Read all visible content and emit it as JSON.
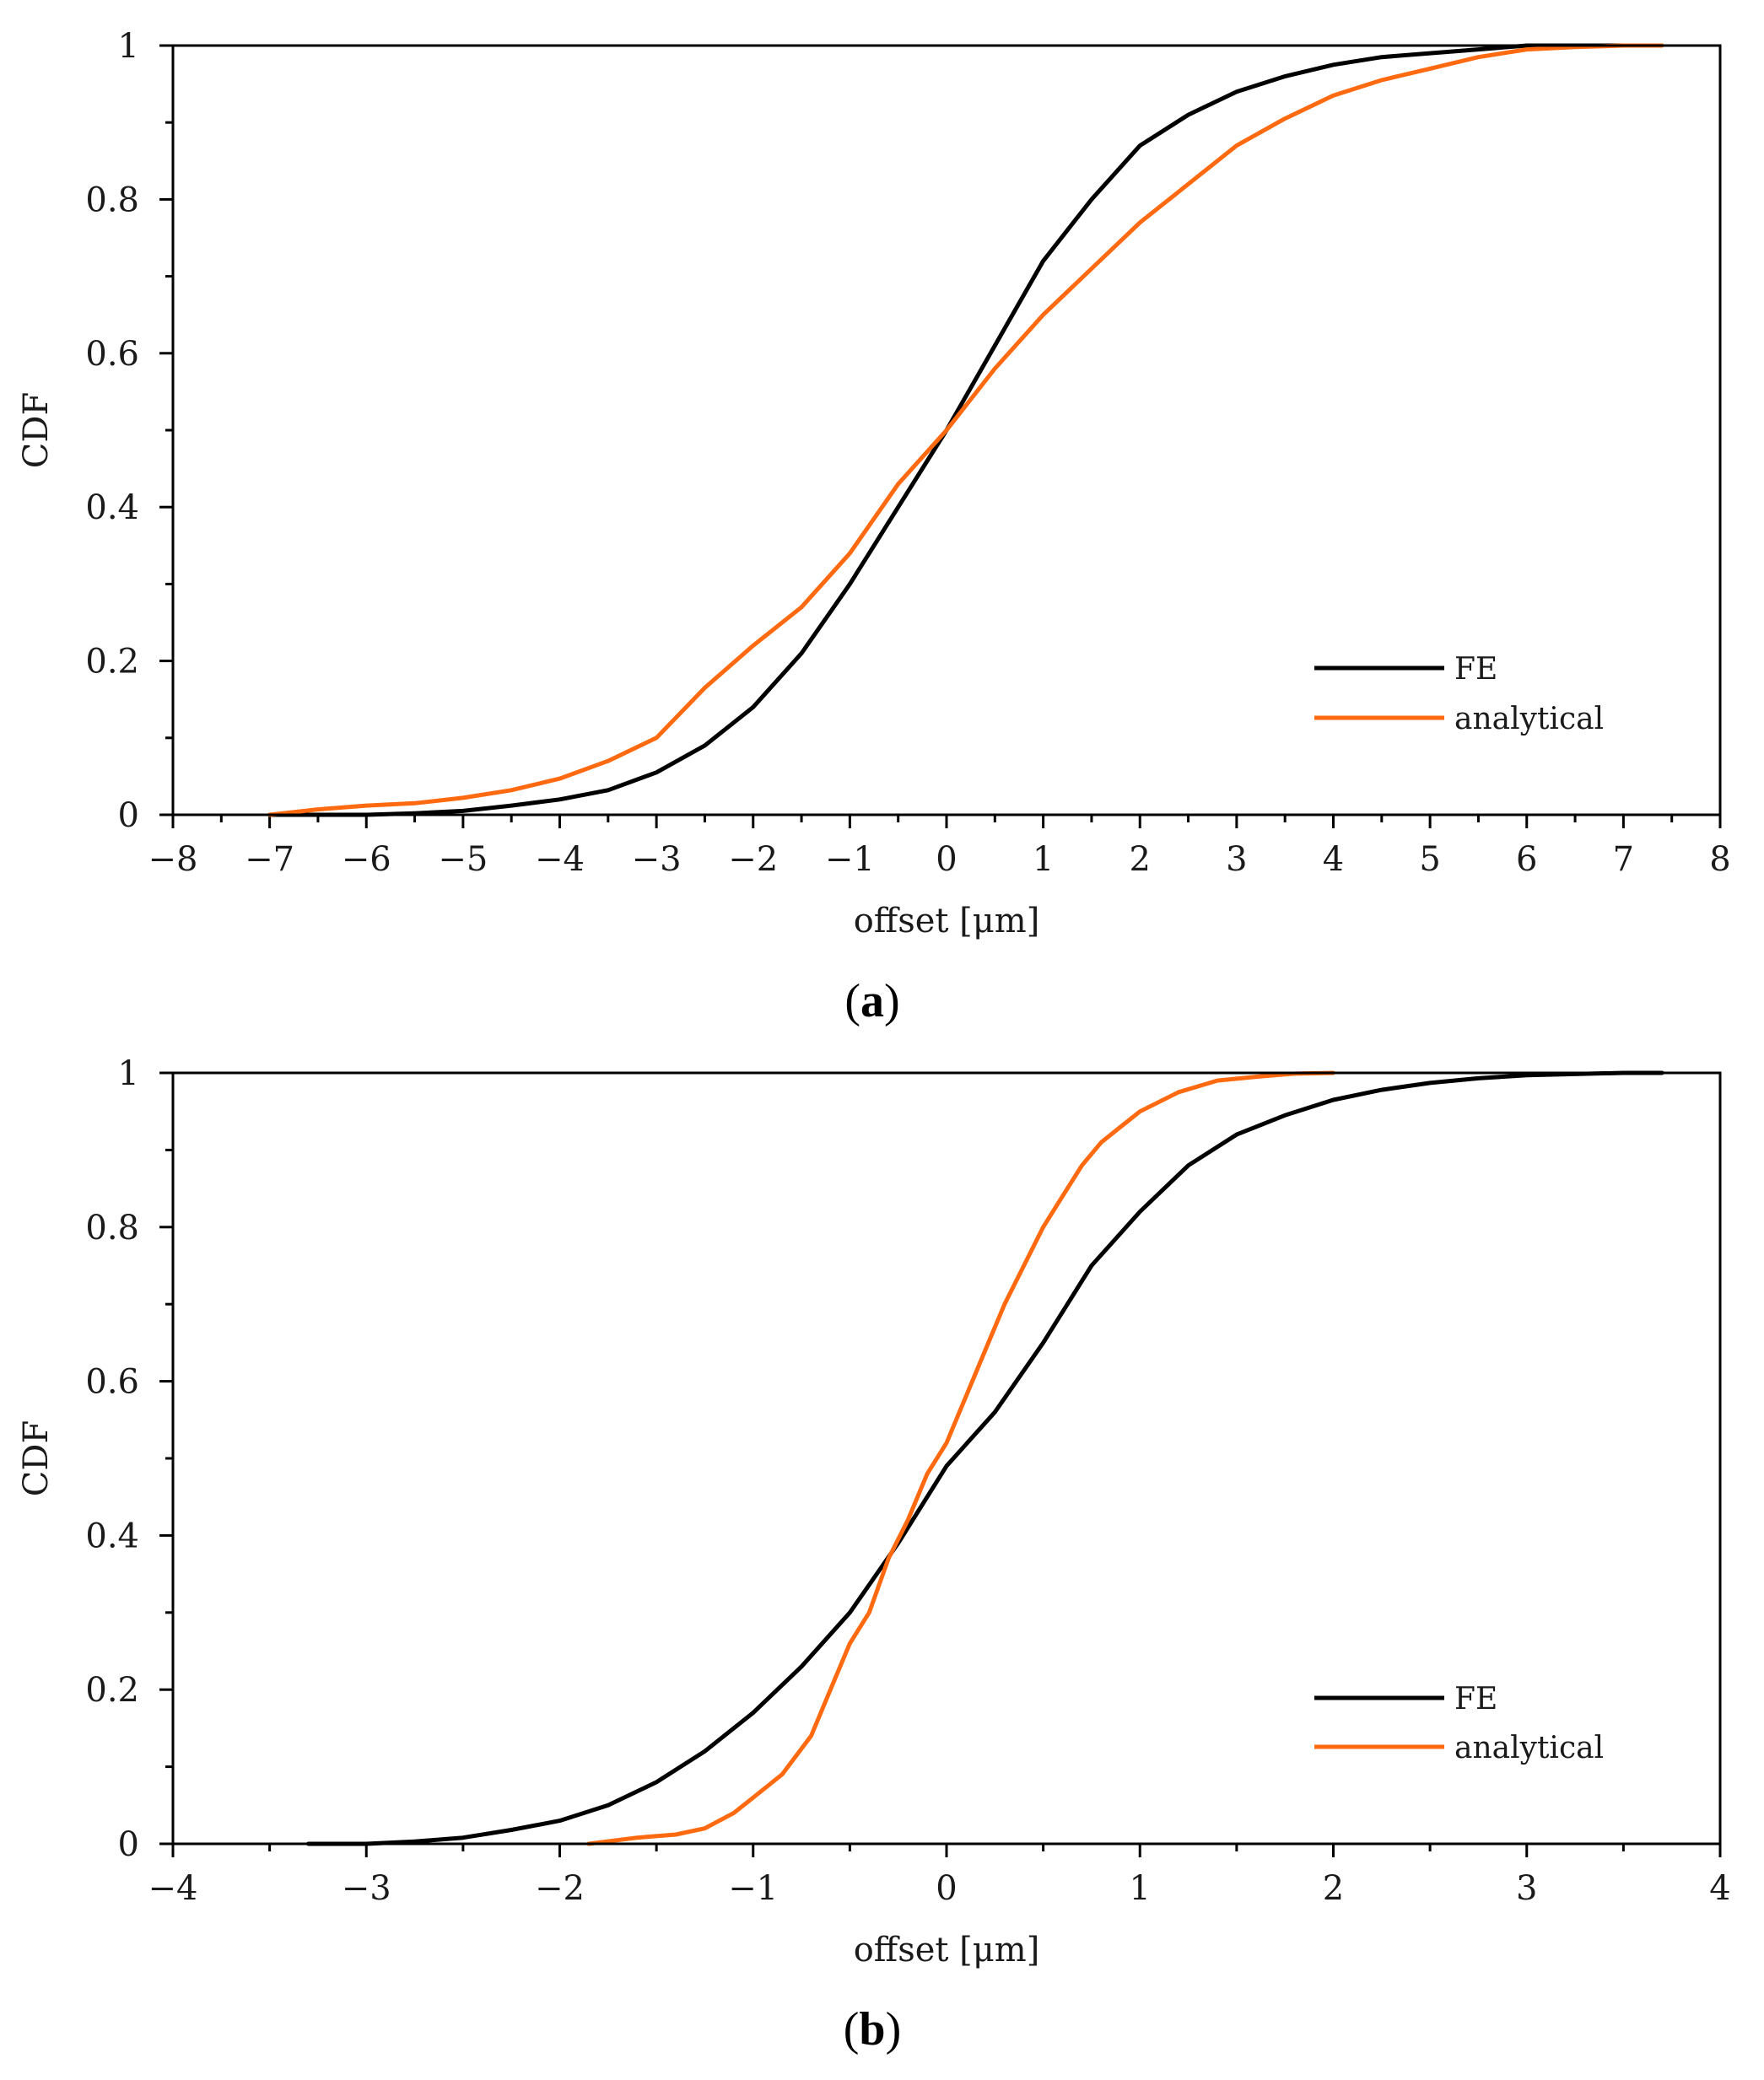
{
  "figure": {
    "colors": {
      "fe": "#000000",
      "analytical": "#ff6a10",
      "axis": "#000000"
    }
  },
  "chart_data": [
    {
      "type": "line",
      "panel": "a",
      "caption": {
        "open": "(",
        "letter": "a",
        "close": ")"
      },
      "xlabel": "offset  [μm]",
      "ylabel": "CDF",
      "xlim": [
        -8,
        8
      ],
      "ylim": [
        0,
        1
      ],
      "xticks": [
        -8,
        -7,
        -6,
        -5,
        -4,
        -3,
        -2,
        -1,
        0,
        1,
        2,
        3,
        4,
        5,
        6,
        7,
        8
      ],
      "xtick_labels": [
        "−8",
        "−7",
        "−6",
        "−5",
        "−4",
        "−3",
        "−2",
        "−1",
        "0",
        "1",
        "2",
        "3",
        "4",
        "5",
        "6",
        "7",
        "8"
      ],
      "yticks": [
        0,
        0.2,
        0.4,
        0.6,
        0.8,
        1
      ],
      "ytick_labels": [
        "0",
        "0.2",
        "0.4",
        "0.6",
        "0.8",
        "1"
      ],
      "grid": false,
      "legend": {
        "position": "bottom-right",
        "entries": [
          "FE",
          "analytical"
        ]
      },
      "series": [
        {
          "name": "FE",
          "x": [
            -7.0,
            -6.0,
            -5.5,
            -5.0,
            -4.5,
            -4.0,
            -3.5,
            -3.0,
            -2.5,
            -2.0,
            -1.5,
            -1.0,
            -0.5,
            0.0,
            0.5,
            1.0,
            1.5,
            2.0,
            2.5,
            3.0,
            3.5,
            4.0,
            4.5,
            5.0,
            5.5,
            6.0,
            7.0
          ],
          "y": [
            0.0,
            0.0,
            0.002,
            0.005,
            0.012,
            0.02,
            0.032,
            0.055,
            0.09,
            0.14,
            0.21,
            0.3,
            0.4,
            0.5,
            0.61,
            0.72,
            0.8,
            0.87,
            0.91,
            0.94,
            0.96,
            0.975,
            0.985,
            0.99,
            0.995,
            1.0,
            1.0
          ]
        },
        {
          "name": "analytical",
          "x": [
            -7.0,
            -6.5,
            -6.0,
            -5.5,
            -5.0,
            -4.5,
            -4.0,
            -3.5,
            -3.0,
            -2.5,
            -2.0,
            -1.5,
            -1.0,
            -0.5,
            0.0,
            0.5,
            1.0,
            1.5,
            2.0,
            2.5,
            3.0,
            3.5,
            4.0,
            4.5,
            5.0,
            5.5,
            6.0,
            6.5,
            7.0,
            7.4
          ],
          "y": [
            0.0,
            0.007,
            0.012,
            0.015,
            0.022,
            0.032,
            0.047,
            0.07,
            0.1,
            0.165,
            0.22,
            0.27,
            0.34,
            0.43,
            0.5,
            0.58,
            0.65,
            0.71,
            0.77,
            0.82,
            0.87,
            0.905,
            0.935,
            0.955,
            0.97,
            0.985,
            0.995,
            0.998,
            1.0,
            1.0
          ]
        }
      ]
    },
    {
      "type": "line",
      "panel": "b",
      "caption": {
        "open": "(",
        "letter": "b",
        "close": ")"
      },
      "xlabel": "offset  [μm]",
      "ylabel": "CDF",
      "xlim": [
        -4,
        4
      ],
      "ylim": [
        0,
        1
      ],
      "xticks": [
        -4,
        -3,
        -2,
        -1,
        0,
        1,
        2,
        3,
        4
      ],
      "xtick_labels": [
        "−4",
        "−3",
        "−2",
        "−1",
        "0",
        "1",
        "2",
        "3",
        "4"
      ],
      "yticks": [
        0,
        0.2,
        0.4,
        0.6,
        0.8,
        1
      ],
      "ytick_labels": [
        "0",
        "0.2",
        "0.4",
        "0.6",
        "0.8",
        "1"
      ],
      "grid": false,
      "legend": {
        "position": "bottom-right",
        "entries": [
          "FE",
          "analytical"
        ]
      },
      "series": [
        {
          "name": "FE",
          "x": [
            -3.3,
            -3.0,
            -2.75,
            -2.5,
            -2.25,
            -2.0,
            -1.75,
            -1.5,
            -1.25,
            -1.0,
            -0.75,
            -0.5,
            -0.25,
            0.0,
            0.25,
            0.5,
            0.75,
            1.0,
            1.25,
            1.5,
            1.75,
            2.0,
            2.25,
            2.5,
            2.75,
            3.0,
            3.5,
            3.7
          ],
          "y": [
            0.0,
            0.0,
            0.003,
            0.008,
            0.018,
            0.03,
            0.05,
            0.08,
            0.12,
            0.17,
            0.23,
            0.3,
            0.39,
            0.49,
            0.56,
            0.65,
            0.75,
            0.82,
            0.88,
            0.92,
            0.945,
            0.965,
            0.978,
            0.987,
            0.993,
            0.997,
            1.0,
            1.0
          ]
        },
        {
          "name": "analytical",
          "x": [
            -1.85,
            -1.6,
            -1.4,
            -1.25,
            -1.1,
            -1.0,
            -0.85,
            -0.7,
            -0.6,
            -0.5,
            -0.4,
            -0.3,
            -0.2,
            -0.1,
            0.0,
            0.1,
            0.2,
            0.3,
            0.4,
            0.5,
            0.6,
            0.7,
            0.8,
            0.9,
            1.0,
            1.2,
            1.4,
            1.6,
            1.8,
            2.0
          ],
          "y": [
            0.0,
            0.008,
            0.012,
            0.02,
            0.04,
            0.06,
            0.09,
            0.14,
            0.2,
            0.26,
            0.3,
            0.37,
            0.42,
            0.48,
            0.52,
            0.58,
            0.64,
            0.7,
            0.75,
            0.8,
            0.84,
            0.88,
            0.91,
            0.93,
            0.95,
            0.975,
            0.99,
            0.995,
            0.999,
            1.0
          ]
        }
      ]
    }
  ]
}
